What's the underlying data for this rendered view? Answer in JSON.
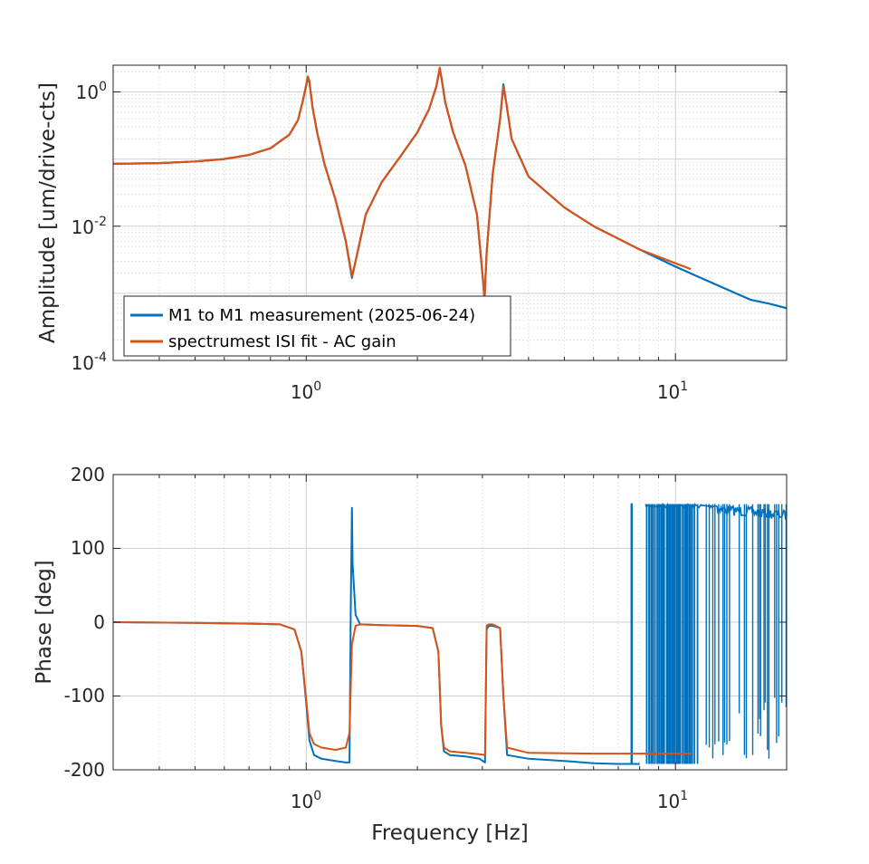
{
  "chart_data": [
    {
      "type": "line",
      "panel": "amplitude",
      "xscale": "log",
      "yscale": "log",
      "xlim": [
        0.3,
        20
      ],
      "ylim": [
        0.0001,
        2.5
      ],
      "ylabel": "Amplitude [um/drive-cts]",
      "xticks": [
        {
          "base": "10",
          "exp": "0"
        },
        {
          "base": "10",
          "exp": "1"
        }
      ],
      "yticks": [
        {
          "base": "10",
          "exp": "0",
          "value": 1
        },
        {
          "base": "10",
          "exp": "-2",
          "value": 0.01
        },
        {
          "base": "10",
          "exp": "-4",
          "value": 0.0001
        }
      ],
      "grid": true,
      "legend": {
        "placement": "bottom-left",
        "entries": [
          "M1 to M1 measurement (2025-06-24)",
          "spectrumest ISI fit - AC gain"
        ]
      },
      "series": [
        {
          "name": "M1 to M1 measurement (2025-06-24)",
          "color": "#0072BD",
          "x": [
            0.3,
            0.4,
            0.5,
            0.6,
            0.7,
            0.8,
            0.9,
            0.95,
            0.98,
            1.01,
            1.02,
            1.04,
            1.07,
            1.12,
            1.2,
            1.28,
            1.33,
            1.36,
            1.45,
            1.6,
            1.8,
            2.0,
            2.15,
            2.25,
            2.3,
            2.33,
            2.38,
            2.5,
            2.7,
            2.9,
            3.0,
            3.04,
            3.08,
            3.2,
            3.35,
            3.42,
            3.48,
            3.6,
            4.0,
            5.0,
            6.0,
            8.0,
            10.0,
            12.0,
            14.0,
            16.0,
            18.0,
            20.0
          ],
          "y": [
            0.085,
            0.087,
            0.092,
            0.1,
            0.115,
            0.145,
            0.23,
            0.38,
            0.75,
            1.6,
            1.4,
            0.6,
            0.25,
            0.085,
            0.025,
            0.006,
            0.0017,
            0.003,
            0.015,
            0.045,
            0.11,
            0.25,
            0.55,
            1.2,
            2.2,
            1.5,
            0.7,
            0.25,
            0.08,
            0.015,
            0.002,
            0.0008,
            0.004,
            0.06,
            0.4,
            1.3,
            0.7,
            0.2,
            0.055,
            0.019,
            0.01,
            0.0045,
            0.0025,
            0.0016,
            0.0011,
            0.0008,
            0.0007,
            0.0006
          ]
        },
        {
          "name": "spectrumest ISI fit - AC gain",
          "color": "#D95319",
          "x": [
            0.3,
            0.4,
            0.5,
            0.6,
            0.7,
            0.8,
            0.9,
            0.95,
            0.98,
            1.01,
            1.02,
            1.04,
            1.07,
            1.12,
            1.2,
            1.28,
            1.33,
            1.36,
            1.45,
            1.6,
            1.8,
            2.0,
            2.15,
            2.25,
            2.3,
            2.33,
            2.38,
            2.5,
            2.7,
            2.9,
            3.0,
            3.04,
            3.08,
            3.2,
            3.35,
            3.42,
            3.48,
            3.6,
            4.0,
            5.0,
            6.0,
            8.0,
            10.0,
            11.0
          ],
          "y": [
            0.085,
            0.087,
            0.092,
            0.1,
            0.115,
            0.145,
            0.23,
            0.38,
            0.75,
            1.7,
            1.45,
            0.6,
            0.25,
            0.085,
            0.025,
            0.006,
            0.0018,
            0.003,
            0.015,
            0.045,
            0.11,
            0.25,
            0.55,
            1.2,
            2.3,
            1.5,
            0.7,
            0.25,
            0.08,
            0.015,
            0.002,
            0.0009,
            0.004,
            0.06,
            0.4,
            1.2,
            0.7,
            0.2,
            0.055,
            0.019,
            0.01,
            0.0045,
            0.0028,
            0.0023
          ]
        }
      ]
    },
    {
      "type": "line",
      "panel": "phase",
      "xscale": "log",
      "yscale": "linear",
      "xlim": [
        0.3,
        20
      ],
      "ylim": [
        -200,
        200
      ],
      "xlabel": "Frequency [Hz]",
      "ylabel": "Phase [deg]",
      "xticks": [
        {
          "base": "10",
          "exp": "0"
        },
        {
          "base": "10",
          "exp": "1"
        }
      ],
      "yticks": [
        "200",
        "100",
        "0",
        "-100",
        "-200"
      ],
      "grid": true,
      "series": [
        {
          "name": "M1 to M1 measurement (2025-06-24)",
          "color": "#0072BD",
          "x": [
            0.3,
            0.5,
            0.7,
            0.85,
            0.93,
            0.97,
            1.0,
            1.02,
            1.05,
            1.1,
            1.2,
            1.28,
            1.31,
            1.32,
            1.33,
            1.335,
            1.36,
            1.4,
            1.6,
            2.0,
            2.2,
            2.28,
            2.32,
            2.36,
            2.45,
            2.7,
            2.95,
            3.05,
            3.08,
            3.12,
            3.2,
            3.35,
            3.42,
            3.5,
            4.0,
            5.0,
            6.0,
            7.0,
            7.6,
            7.6,
            7.62,
            7.62,
            8.0
          ],
          "y": [
            0,
            -1,
            -2,
            -3,
            -10,
            -40,
            -110,
            -160,
            -180,
            -185,
            -188,
            -190,
            -190,
            20,
            155,
            80,
            10,
            -3,
            -4,
            -5,
            -8,
            -40,
            -140,
            -175,
            -180,
            -182,
            -185,
            -190,
            -10,
            -5,
            -5,
            -8,
            -100,
            -180,
            -185,
            -188,
            -191,
            -192,
            -192,
            160,
            160,
            -192,
            -192
          ]
        },
        {
          "name": "spectrumest ISI fit - AC gain",
          "color": "#D95319",
          "x": [
            0.3,
            0.5,
            0.7,
            0.85,
            0.93,
            0.97,
            1.0,
            1.02,
            1.05,
            1.1,
            1.2,
            1.28,
            1.31,
            1.33,
            1.36,
            1.4,
            1.6,
            2.0,
            2.2,
            2.28,
            2.32,
            2.36,
            2.45,
            2.7,
            2.95,
            3.05,
            3.08,
            3.12,
            3.2,
            3.35,
            3.42,
            3.5,
            4.0,
            6.0,
            8.0,
            11.0
          ],
          "y": [
            0,
            -1,
            -2,
            -3,
            -10,
            -40,
            -105,
            -150,
            -165,
            -170,
            -173,
            -170,
            -150,
            -30,
            -5,
            -3,
            -4,
            -5,
            -8,
            -40,
            -140,
            -170,
            -175,
            -177,
            -179,
            -180,
            -5,
            -3,
            -3,
            -8,
            -100,
            -170,
            -177,
            -178,
            -178,
            -178
          ]
        }
      ]
    }
  ]
}
